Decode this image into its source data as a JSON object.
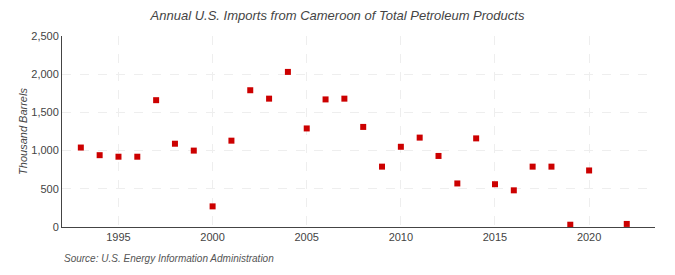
{
  "chart_data": {
    "type": "scatter",
    "title": "Annual U.S. Imports from Cameroon of Total Petroleum Products",
    "ylabel": "Thousand Barrels",
    "annotations": [
      "Source: U.S. Energy Information Administration"
    ],
    "x": [
      1993,
      1994,
      1995,
      1996,
      1997,
      1998,
      1999,
      2000,
      2001,
      2002,
      2003,
      2004,
      2005,
      2006,
      2007,
      2008,
      2009,
      2010,
      2011,
      2012,
      2013,
      2014,
      2015,
      2016,
      2017,
      2018,
      2019,
      2020,
      2022
    ],
    "values": [
      1040,
      940,
      920,
      920,
      1660,
      1090,
      1000,
      270,
      1130,
      1790,
      1680,
      2030,
      1290,
      1670,
      1680,
      1310,
      790,
      1050,
      1170,
      930,
      570,
      1160,
      560,
      480,
      790,
      790,
      30,
      740,
      40
    ],
    "color": "#cc0000",
    "marker": "square",
    "xlim": [
      1992.0,
      2023.5
    ],
    "ylim": [
      0,
      2500
    ],
    "xticks": [
      1995,
      2000,
      2005,
      2010,
      2015,
      2020
    ],
    "yticks": [
      0,
      500,
      {
        "value": 1000,
        "label": "1,000"
      },
      {
        "value": 1500,
        "label": "1,500"
      },
      {
        "value": 2000,
        "label": "2,000"
      },
      {
        "value": 2500,
        "label": "2,500"
      }
    ],
    "grid": true
  }
}
